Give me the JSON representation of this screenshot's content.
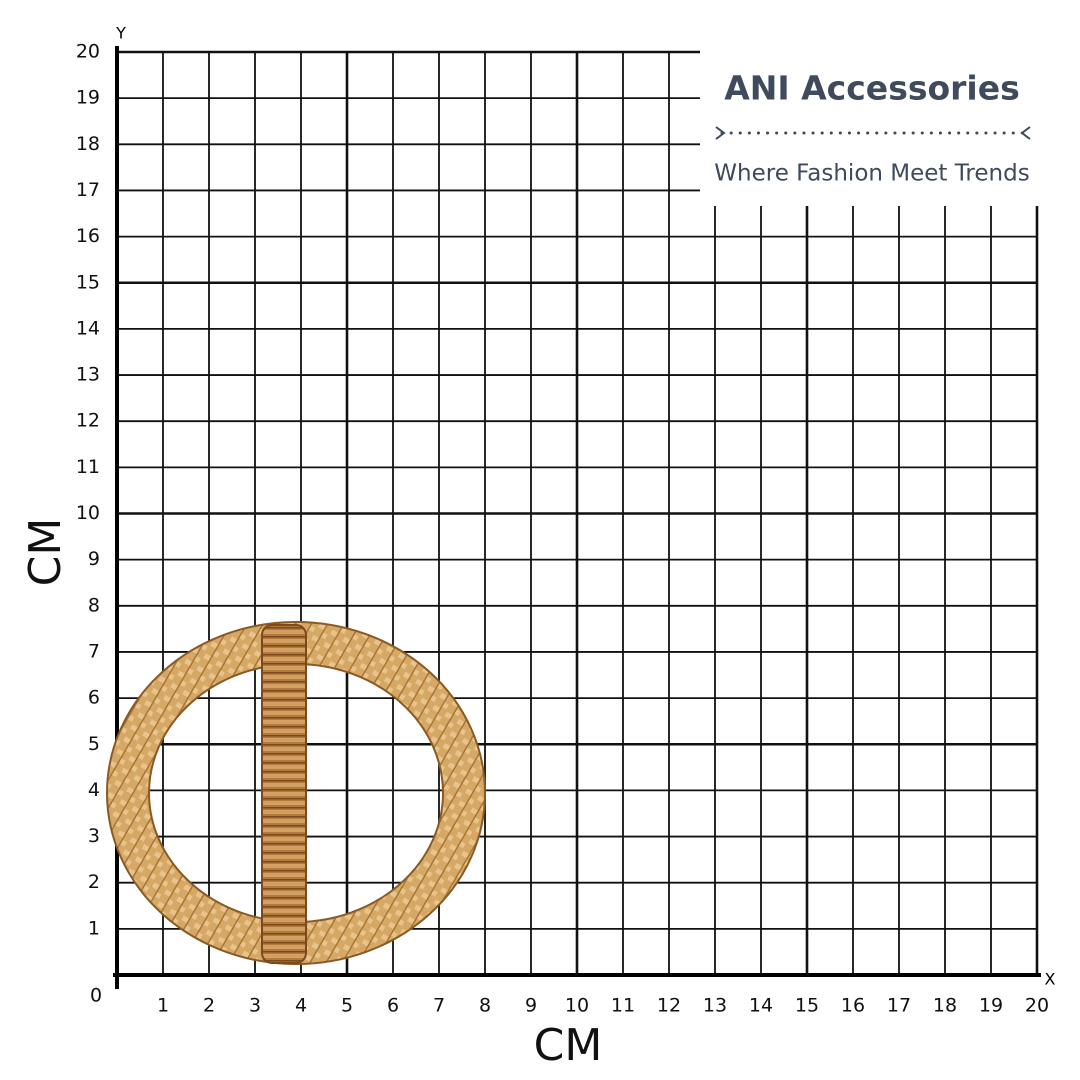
{
  "grid": {
    "origin": 0,
    "x_axis_letter": "X",
    "y_axis_letter": "Y",
    "x_ticks": [
      1,
      2,
      3,
      4,
      5,
      6,
      7,
      8,
      9,
      10,
      11,
      12,
      13,
      14,
      15,
      16,
      17,
      18,
      19,
      20
    ],
    "y_ticks": [
      1,
      2,
      3,
      4,
      5,
      6,
      7,
      8,
      9,
      10,
      11,
      12,
      13,
      14,
      15,
      16,
      17,
      18,
      19,
      20
    ],
    "x_unit": "CM",
    "y_unit": "CM"
  },
  "brand": {
    "name": "ANI Accessories",
    "tagline": "Where Fashion Meet Trends"
  }
}
